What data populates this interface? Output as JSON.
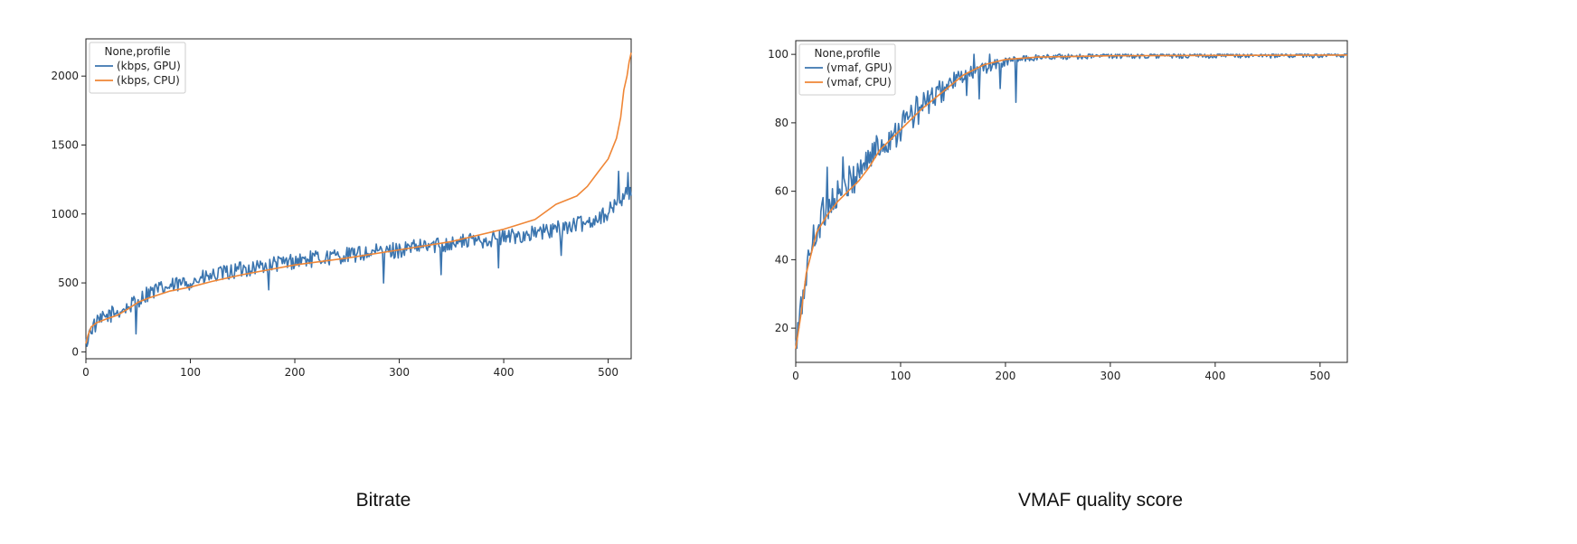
{
  "chart_data": [
    {
      "type": "line",
      "caption": "Bitrate",
      "legend": {
        "title": "None,profile",
        "placement": "upper-left"
      },
      "xlim": [
        0,
        522
      ],
      "ylim": [
        -50,
        2270
      ],
      "xticks": [
        0,
        100,
        200,
        300,
        400,
        500
      ],
      "yticks": [
        0,
        500,
        1000,
        1500,
        2000
      ],
      "series": [
        {
          "name": "(kbps, GPU)",
          "color": "#3b75af",
          "kind": "noisy",
          "trend": [
            [
              0,
              60
            ],
            [
              5,
              170
            ],
            [
              20,
              260
            ],
            [
              40,
              320
            ],
            [
              60,
              430
            ],
            [
              100,
              510
            ],
            [
              150,
              600
            ],
            [
              200,
              660
            ],
            [
              250,
              700
            ],
            [
              300,
              740
            ],
            [
              350,
              790
            ],
            [
              400,
              830
            ],
            [
              440,
              870
            ],
            [
              480,
              940
            ],
            [
              500,
              1010
            ],
            [
              515,
              1130
            ],
            [
              522,
              1160
            ]
          ],
          "noise_amplitude": 60,
          "dips": [
            [
              48,
              130
            ],
            [
              175,
              450
            ],
            [
              285,
              500
            ],
            [
              340,
              560
            ],
            [
              395,
              610
            ],
            [
              455,
              700
            ]
          ],
          "peaks": [
            [
              510,
              1310
            ],
            [
              519,
              1300
            ]
          ]
        },
        {
          "name": "(kbps, CPU)",
          "color": "#ef8636",
          "kind": "smooth",
          "points": [
            [
              0,
              60
            ],
            [
              2,
              120
            ],
            [
              5,
              180
            ],
            [
              10,
              210
            ],
            [
              20,
              240
            ],
            [
              30,
              265
            ],
            [
              40,
              310
            ],
            [
              50,
              360
            ],
            [
              60,
              390
            ],
            [
              70,
              415
            ],
            [
              80,
              440
            ],
            [
              100,
              470
            ],
            [
              120,
              510
            ],
            [
              150,
              560
            ],
            [
              200,
              630
            ],
            [
              250,
              680
            ],
            [
              300,
              740
            ],
            [
              350,
              800
            ],
            [
              400,
              890
            ],
            [
              430,
              960
            ],
            [
              450,
              1070
            ],
            [
              470,
              1130
            ],
            [
              480,
              1200
            ],
            [
              490,
              1300
            ],
            [
              500,
              1400
            ],
            [
              508,
              1550
            ],
            [
              512,
              1700
            ],
            [
              515,
              1900
            ],
            [
              518,
              2000
            ],
            [
              520,
              2100
            ],
            [
              522,
              2170
            ]
          ]
        }
      ]
    },
    {
      "type": "line",
      "caption": "VMAF quality score",
      "legend": {
        "title": "None,profile",
        "placement": "upper-left"
      },
      "xlim": [
        0,
        526
      ],
      "ylim": [
        10,
        104
      ],
      "xticks": [
        0,
        100,
        200,
        300,
        400,
        500
      ],
      "yticks": [
        20,
        40,
        60,
        80,
        100
      ],
      "series": [
        {
          "name": "(vmaf, GPU)",
          "color": "#3b75af",
          "kind": "noisy",
          "trend": [
            [
              0,
              14
            ],
            [
              5,
              25
            ],
            [
              10,
              36
            ],
            [
              15,
              44
            ],
            [
              20,
              49
            ],
            [
              30,
              56
            ],
            [
              50,
              62
            ],
            [
              70,
              70
            ],
            [
              90,
              76
            ],
            [
              110,
              82
            ],
            [
              130,
              87
            ],
            [
              150,
              92
            ],
            [
              170,
              95
            ],
            [
              190,
              97
            ],
            [
              210,
              98.5
            ],
            [
              240,
              99.3
            ],
            [
              300,
              99.6
            ],
            [
              400,
              99.7
            ],
            [
              526,
              99.8
            ]
          ],
          "noise_amplitude": 5,
          "dips": [
            [
              210,
              86
            ],
            [
              175,
              87
            ],
            [
              163,
              88
            ],
            [
              195,
              90
            ]
          ],
          "peaks": [
            [
              30,
              67
            ],
            [
              45,
              70
            ],
            [
              170,
              100
            ],
            [
              185,
              100
            ]
          ]
        },
        {
          "name": "(vmaf, CPU)",
          "color": "#ef8636",
          "kind": "smooth",
          "points": [
            [
              0,
              14
            ],
            [
              5,
              24
            ],
            [
              10,
              36
            ],
            [
              15,
              42
            ],
            [
              20,
              48
            ],
            [
              30,
              53
            ],
            [
              40,
              57
            ],
            [
              50,
              60
            ],
            [
              60,
              63
            ],
            [
              70,
              67
            ],
            [
              80,
              72
            ],
            [
              100,
              78
            ],
            [
              120,
              84
            ],
            [
              140,
              89
            ],
            [
              160,
              94
            ],
            [
              180,
              97
            ],
            [
              200,
              98.5
            ],
            [
              230,
              99.2
            ],
            [
              300,
              99.6
            ],
            [
              400,
              99.7
            ],
            [
              526,
              99.8
            ]
          ]
        }
      ]
    }
  ]
}
